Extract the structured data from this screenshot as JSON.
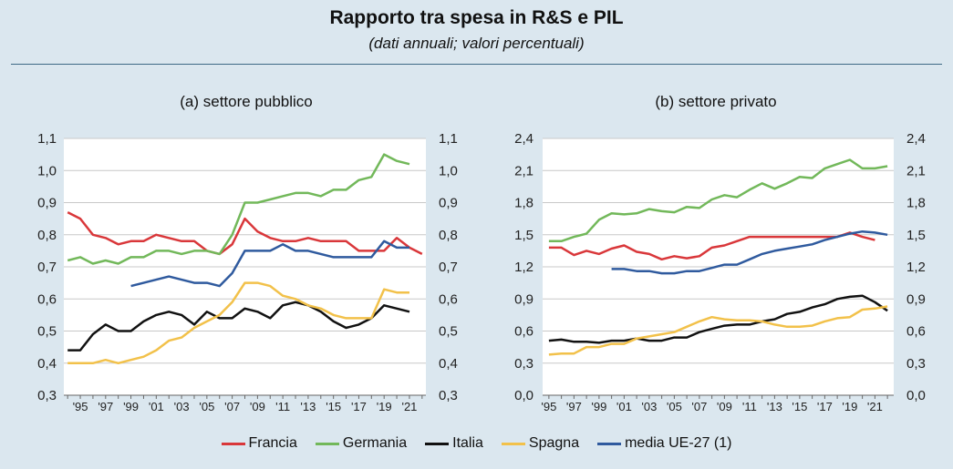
{
  "header": {
    "title": "Rapporto tra spesa in R&S e PIL",
    "subtitle": "(dati annuali; valori percentuali)"
  },
  "legend": [
    {
      "name": "Francia",
      "color": "#d9373a"
    },
    {
      "name": "Germania",
      "color": "#72b85a"
    },
    {
      "name": "Italia",
      "color": "#111111"
    },
    {
      "name": "Spagna",
      "color": "#f2c14a"
    },
    {
      "name": "media UE-27 (1)",
      "color": "#2f5a9e"
    }
  ],
  "chart_data": [
    {
      "type": "line",
      "title": "(a) settore pubblico",
      "ylim": [
        0.3,
        1.1
      ],
      "yticks": [
        "0,3",
        "0,4",
        "0,5",
        "0,6",
        "0,7",
        "0,8",
        "0,9",
        "1,0",
        "1,1"
      ],
      "ytick_values": [
        0.3,
        0.4,
        0.5,
        0.6,
        0.7,
        0.8,
        0.9,
        1.0,
        1.1
      ],
      "x": [
        1994,
        1995,
        1996,
        1997,
        1998,
        1999,
        2000,
        2001,
        2002,
        2003,
        2004,
        2005,
        2006,
        2007,
        2008,
        2009,
        2010,
        2011,
        2012,
        2013,
        2014,
        2015,
        2016,
        2017,
        2018,
        2019,
        2020,
        2021,
        2022
      ],
      "xtick_labels": [
        "'95",
        "'97",
        "'99",
        "'01",
        "'03",
        "'05",
        "'07",
        "'09",
        "'11",
        "'13",
        "'15",
        "'17",
        "'19",
        "'21"
      ],
      "xtick_years": [
        1995,
        1997,
        1999,
        2001,
        2003,
        2005,
        2007,
        2009,
        2011,
        2013,
        2015,
        2017,
        2019,
        2021
      ],
      "grid": true,
      "series": [
        {
          "name": "Francia",
          "color": "#d9373a",
          "values": [
            0.87,
            0.85,
            0.8,
            0.79,
            0.77,
            0.78,
            0.78,
            0.8,
            0.79,
            0.78,
            0.78,
            0.75,
            0.74,
            0.77,
            0.85,
            0.81,
            0.79,
            0.78,
            0.78,
            0.79,
            0.78,
            0.78,
            0.78,
            0.75,
            0.75,
            0.75,
            0.79,
            0.76,
            0.74
          ]
        },
        {
          "name": "Germania",
          "color": "#72b85a",
          "values": [
            0.72,
            0.73,
            0.71,
            0.72,
            0.71,
            0.73,
            0.73,
            0.75,
            0.75,
            0.74,
            0.75,
            0.75,
            0.74,
            0.8,
            0.9,
            0.9,
            0.91,
            0.92,
            0.93,
            0.93,
            0.92,
            0.94,
            0.94,
            0.97,
            0.98,
            1.05,
            1.03,
            1.02,
            null
          ]
        },
        {
          "name": "Italia",
          "color": "#111111",
          "values": [
            0.44,
            0.44,
            0.49,
            0.52,
            0.5,
            0.5,
            0.53,
            0.55,
            0.56,
            0.55,
            0.52,
            0.56,
            0.54,
            0.54,
            0.57,
            0.56,
            0.54,
            0.58,
            0.59,
            0.58,
            0.56,
            0.53,
            0.51,
            0.52,
            0.54,
            0.58,
            0.57,
            0.56,
            null
          ]
        },
        {
          "name": "Spagna",
          "color": "#f2c14a",
          "values": [
            0.4,
            0.4,
            0.4,
            0.41,
            0.4,
            0.41,
            0.42,
            0.44,
            0.47,
            0.48,
            0.51,
            0.53,
            0.55,
            0.59,
            0.65,
            0.65,
            0.64,
            0.61,
            0.6,
            0.58,
            0.57,
            0.55,
            0.54,
            0.54,
            0.54,
            0.63,
            0.62,
            0.62,
            null
          ]
        },
        {
          "name": "media UE-27 (1)",
          "color": "#2f5a9e",
          "values": [
            null,
            null,
            null,
            null,
            null,
            0.64,
            0.65,
            0.66,
            0.67,
            0.66,
            0.65,
            0.65,
            0.64,
            0.68,
            0.75,
            0.75,
            0.75,
            0.77,
            0.75,
            0.75,
            0.74,
            0.73,
            0.73,
            0.73,
            0.73,
            0.78,
            0.76,
            0.76,
            null
          ]
        }
      ]
    },
    {
      "type": "line",
      "title": "(b) settore privato",
      "ylim": [
        0.0,
        2.4
      ],
      "yticks": [
        "0,0",
        "0,3",
        "0,6",
        "0,9",
        "1,2",
        "1,5",
        "1,8",
        "2,1",
        "2,4"
      ],
      "ytick_values": [
        0.0,
        0.3,
        0.6,
        0.9,
        1.2,
        1.5,
        1.8,
        2.1,
        2.4
      ],
      "x": [
        1995,
        1996,
        1997,
        1998,
        1999,
        2000,
        2001,
        2002,
        2003,
        2004,
        2005,
        2006,
        2007,
        2008,
        2009,
        2010,
        2011,
        2012,
        2013,
        2014,
        2015,
        2016,
        2017,
        2018,
        2019,
        2020,
        2021,
        2022
      ],
      "xtick_labels": [
        "'95",
        "'97",
        "'99",
        "'01",
        "'03",
        "'05",
        "'07",
        "'09",
        "'11",
        "'13",
        "'15",
        "'17",
        "'19",
        "'21"
      ],
      "xtick_years": [
        1995,
        1997,
        1999,
        2001,
        2003,
        2005,
        2007,
        2009,
        2011,
        2013,
        2015,
        2017,
        2019,
        2021
      ],
      "grid": true,
      "series": [
        {
          "name": "Francia",
          "color": "#d9373a",
          "values": [
            1.38,
            1.38,
            1.31,
            1.35,
            1.32,
            1.37,
            1.4,
            1.34,
            1.32,
            1.27,
            1.3,
            1.28,
            1.3,
            1.38,
            1.4,
            1.44,
            1.48,
            1.48,
            1.48,
            1.48,
            1.48,
            1.48,
            1.48,
            1.48,
            1.52,
            1.48,
            1.45,
            null
          ]
        },
        {
          "name": "Germania",
          "color": "#72b85a",
          "values": [
            1.44,
            1.44,
            1.48,
            1.51,
            1.64,
            1.7,
            1.69,
            1.7,
            1.74,
            1.72,
            1.71,
            1.76,
            1.75,
            1.83,
            1.87,
            1.85,
            1.92,
            1.98,
            1.93,
            1.98,
            2.04,
            2.03,
            2.12,
            2.16,
            2.2,
            2.12,
            2.12,
            2.14
          ]
        },
        {
          "name": "Italia",
          "color": "#111111",
          "values": [
            0.51,
            0.52,
            0.5,
            0.5,
            0.49,
            0.51,
            0.51,
            0.53,
            0.51,
            0.51,
            0.54,
            0.54,
            0.59,
            0.62,
            0.65,
            0.66,
            0.66,
            0.69,
            0.71,
            0.76,
            0.78,
            0.82,
            0.85,
            0.9,
            0.92,
            0.93,
            0.87,
            0.79
          ]
        },
        {
          "name": "Spagna",
          "color": "#f2c14a",
          "values": [
            0.38,
            0.39,
            0.39,
            0.45,
            0.45,
            0.48,
            0.48,
            0.53,
            0.55,
            0.57,
            0.59,
            0.64,
            0.69,
            0.73,
            0.71,
            0.7,
            0.7,
            0.69,
            0.66,
            0.64,
            0.64,
            0.65,
            0.69,
            0.72,
            0.73,
            0.8,
            0.81,
            0.83
          ]
        },
        {
          "name": "media UE-27 (1)",
          "color": "#2f5a9e",
          "values": [
            null,
            null,
            null,
            null,
            null,
            1.18,
            1.18,
            1.16,
            1.16,
            1.14,
            1.14,
            1.16,
            1.16,
            1.19,
            1.22,
            1.22,
            1.27,
            1.32,
            1.35,
            1.37,
            1.39,
            1.41,
            1.45,
            1.48,
            1.51,
            1.53,
            1.52,
            1.5
          ]
        }
      ]
    }
  ]
}
